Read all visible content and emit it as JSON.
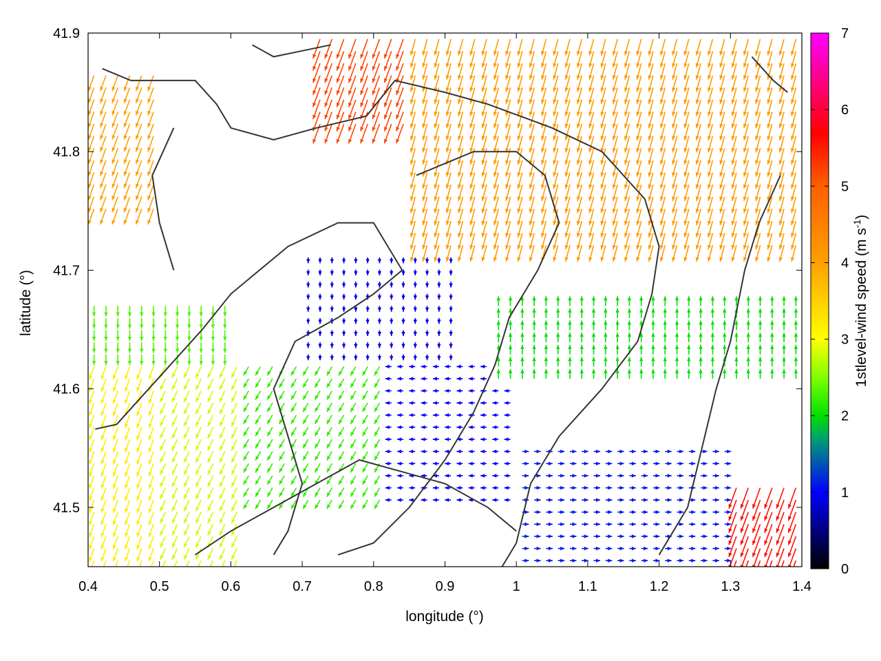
{
  "chart_data": {
    "type": "vector_field",
    "xlabel": "longitude (°)",
    "ylabel": "latitude (°)",
    "colorbar": {
      "label_prefix": "1stlevel-wind speed (m s",
      "label_sup": "-1",
      "label_suffix": ")",
      "range": [
        0,
        7
      ],
      "ticks": [
        "0",
        "1",
        "2",
        "3",
        "4",
        "5",
        "6",
        "7"
      ],
      "stops": [
        {
          "value": 0,
          "color": "#000000"
        },
        {
          "value": 1,
          "color": "#0000ff"
        },
        {
          "value": 1.7,
          "color": "#00a070"
        },
        {
          "value": 2,
          "color": "#00e000"
        },
        {
          "value": 2.5,
          "color": "#80ff00"
        },
        {
          "value": 3,
          "color": "#ffff00"
        },
        {
          "value": 4,
          "color": "#ffa000"
        },
        {
          "value": 5,
          "color": "#ff6000"
        },
        {
          "value": 5.7,
          "color": "#ff0000"
        },
        {
          "value": 7,
          "color": "#ff00ff"
        }
      ]
    },
    "xlim": [
      0.4,
      1.4
    ],
    "ylim": [
      41.45,
      41.9
    ],
    "xticks": [
      "0.4",
      "0.5",
      "0.6",
      "0.7",
      "0.8",
      "0.9",
      "1",
      "1.1",
      "1.2",
      "1.3",
      "1.4"
    ],
    "yticks": [
      {
        "value": 41.5,
        "label": "41.5"
      },
      {
        "value": 41.6,
        "label": "41.6"
      },
      {
        "value": 41.7,
        "label": "41.7"
      },
      {
        "value": 41.8,
        "label": "41.8"
      },
      {
        "value": 41.9,
        "label": "41.9"
      }
    ],
    "grid": false,
    "wind_regions": [
      {
        "lon": [
          0.4,
          0.5
        ],
        "lat": [
          41.75,
          41.87
        ],
        "speed": 4.0,
        "dir_deg": 200
      },
      {
        "lon": [
          0.4,
          0.5
        ],
        "lat": [
          41.45,
          41.62
        ],
        "speed": 3.2,
        "dir_deg": 200
      },
      {
        "lon": [
          0.4,
          0.6
        ],
        "lat": [
          41.62,
          41.68
        ],
        "speed": 2.3,
        "dir_deg": 180
      },
      {
        "lon": [
          0.5,
          0.62
        ],
        "lat": [
          41.45,
          41.62
        ],
        "speed": 2.8,
        "dir_deg": 205
      },
      {
        "lon": [
          0.62,
          0.82
        ],
        "lat": [
          41.5,
          41.62
        ],
        "speed": 2.2,
        "dir_deg": 210
      },
      {
        "lon": [
          0.82,
          1.0
        ],
        "lat": [
          41.5,
          41.62
        ],
        "speed": 1.0,
        "dir_deg": 270
      },
      {
        "lon": [
          0.7,
          0.92
        ],
        "lat": [
          41.62,
          41.72
        ],
        "speed": 0.9,
        "dir_deg": 180
      },
      {
        "lon": [
          0.72,
          0.9
        ],
        "lat": [
          41.82,
          41.9
        ],
        "speed": 5.2,
        "dir_deg": 200
      },
      {
        "lon": [
          0.85,
          1.4
        ],
        "lat": [
          41.72,
          41.9
        ],
        "speed": 4.1,
        "dir_deg": 195
      },
      {
        "lon": [
          0.96,
          1.4
        ],
        "lat": [
          41.6,
          41.67
        ],
        "speed": 2.0,
        "dir_deg": 0
      },
      {
        "lon": [
          1.3,
          1.4
        ],
        "lat": [
          41.45,
          41.52
        ],
        "speed": 5.6,
        "dir_deg": 200
      },
      {
        "lon": [
          1.0,
          1.3
        ],
        "lat": [
          41.45,
          41.55
        ],
        "speed": 1.1,
        "dir_deg": 90
      }
    ]
  }
}
